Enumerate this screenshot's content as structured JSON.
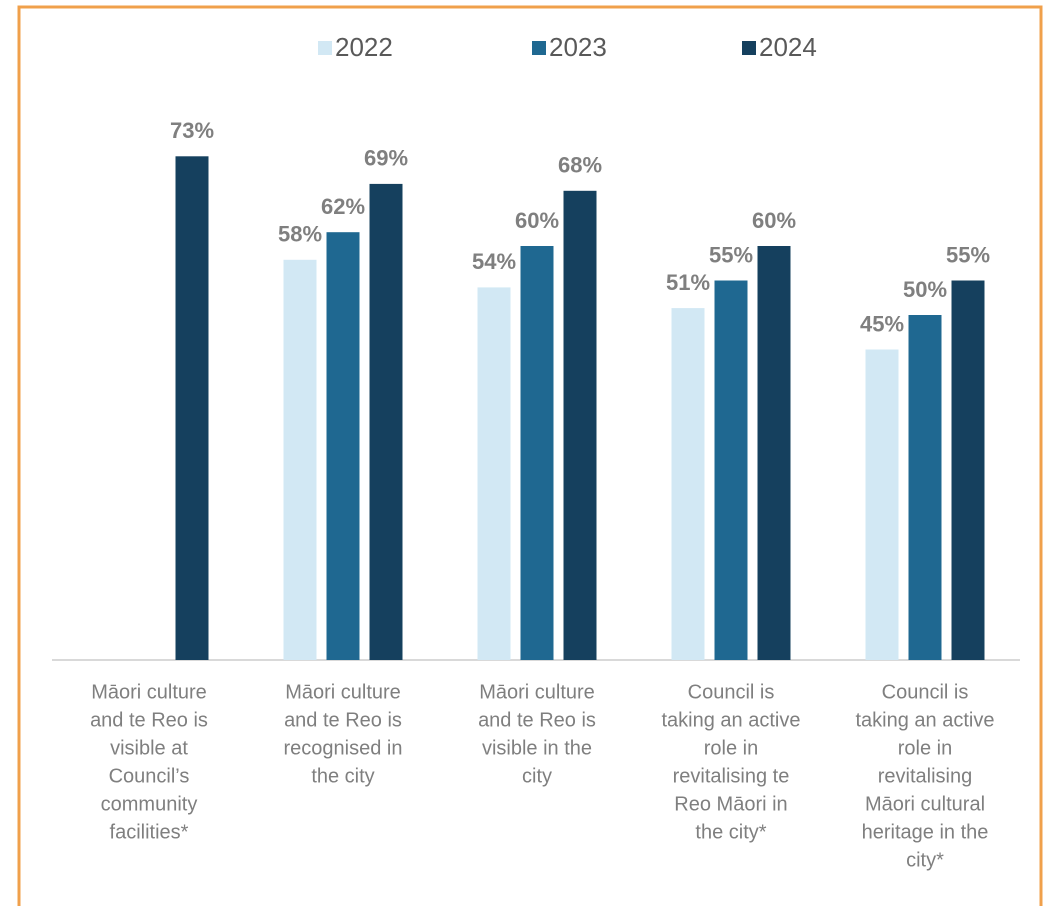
{
  "chart_data": {
    "type": "bar",
    "categories": [
      [
        "Māori culture",
        "and te Reo is",
        "visible at",
        "Council’s",
        "community",
        "facilities*"
      ],
      [
        "Māori culture",
        "and te Reo is",
        "recognised in",
        "the city"
      ],
      [
        "Māori culture",
        "and te Reo is",
        "visible in the",
        "city"
      ],
      [
        "Council is",
        "taking an active",
        "role in",
        "revitalising te",
        "Reo Māori in",
        "the city*"
      ],
      [
        "Council is",
        "taking an active",
        "role in",
        "revitalising",
        "Māori cultural",
        "heritage in the",
        "city*"
      ]
    ],
    "series": [
      {
        "name": "2022",
        "color": "#d2e8f4",
        "values": [
          null,
          58,
          54,
          51,
          45
        ],
        "value_labels": [
          null,
          "58%",
          "54%",
          "51%",
          "45%"
        ]
      },
      {
        "name": "2023",
        "color": "#1f6891",
        "values": [
          null,
          62,
          60,
          55,
          50
        ],
        "value_labels": [
          null,
          "62%",
          "60%",
          "55%",
          "50%"
        ]
      },
      {
        "name": "2024",
        "color": "#15405e",
        "values": [
          73,
          69,
          68,
          60,
          55
        ],
        "value_labels": [
          "73%",
          "69%",
          "68%",
          "60%",
          "55%"
        ]
      }
    ],
    "ylim": [
      0,
      80
    ],
    "legend": "top"
  }
}
